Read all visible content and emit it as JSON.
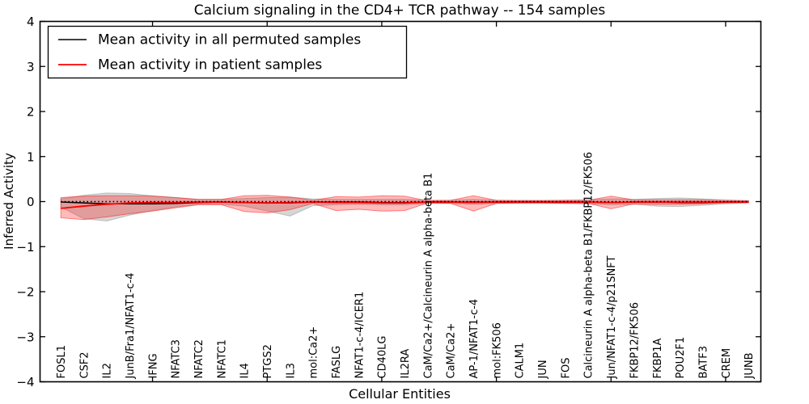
{
  "title": "Calcium signaling in the CD4+ TCR pathway -- 154 samples",
  "legend": {
    "items": [
      {
        "label": "Mean activity in all permuted samples",
        "color": "#000000"
      },
      {
        "label": "Mean activity in patient samples",
        "color": "#ff0000"
      }
    ]
  },
  "axes": {
    "x_label": "Cellular Entities",
    "y_label": "Inferred Activity",
    "y_tick_labels": [
      "4",
      "3",
      "2",
      "1",
      "0",
      "−1",
      "−2",
      "−3",
      "−4"
    ],
    "y_tick_values": [
      4,
      3,
      2,
      1,
      0,
      -1,
      -2,
      -3,
      -4
    ],
    "x_inner_tick_indices": [
      4,
      9,
      14,
      19,
      24,
      29
    ]
  },
  "chart_data": {
    "type": "line",
    "title": "Calcium signaling in the CD4+ TCR pathway -- 154 samples",
    "xlabel": "Cellular Entities",
    "ylabel": "Inferred Activity",
    "ylim": [
      -4,
      4
    ],
    "grid": false,
    "legend_position": "upper left",
    "zero_line": {
      "style": "dotted",
      "color": "#000000",
      "y": 0
    },
    "categories": [
      "FOSL1",
      "CSF2",
      "IL2",
      "JunB/Fra1/NFAT1-c-4",
      "IFNG",
      "NFATC3",
      "NFATC2",
      "NFATC1",
      "IL4",
      "PTGS2",
      "IL3",
      "mol:Ca2+",
      "FASLG",
      "NFAT1-c-4/ICER1",
      "CD40LG",
      "IL2RA",
      "CaM/Ca2+/Calcineurin A alpha-beta B1",
      "CaM/Ca2+",
      "AP-1/NFAT1-c-4",
      "mol:FK506",
      "CALM1",
      "JUN",
      "FOS",
      "Calcineurin A alpha-beta B1/FKBP12/FK506",
      "Jun/NFAT1-c-4/p21SNFT",
      "FKBP12/FK506",
      "FKBP1A",
      "POU2F1",
      "BATF3",
      "CREM",
      "JUNB"
    ],
    "series": [
      {
        "name": "Mean activity in all permuted samples",
        "color": "#000000",
        "width": 1.5,
        "values": [
          -0.01,
          -0.03,
          -0.05,
          -0.05,
          -0.05,
          -0.04,
          -0.02,
          -0.01,
          -0.02,
          -0.03,
          -0.03,
          -0.01,
          -0.01,
          -0.01,
          -0.02,
          -0.02,
          -0.01,
          -0.01,
          -0.01,
          -0.01,
          -0.01,
          -0.01,
          -0.01,
          -0.01,
          -0.02,
          -0.01,
          -0.01,
          -0.02,
          -0.02,
          -0.01,
          -0.01
        ]
      },
      {
        "name": "Mean activity in patient samples",
        "color": "#ff0000",
        "width": 1.8,
        "values": [
          -0.15,
          -0.1,
          -0.06,
          -0.03,
          -0.02,
          -0.02,
          -0.01,
          -0.01,
          -0.02,
          -0.03,
          -0.02,
          -0.01,
          -0.02,
          -0.02,
          -0.03,
          -0.03,
          -0.01,
          -0.01,
          -0.02,
          -0.01,
          -0.01,
          -0.01,
          -0.01,
          -0.01,
          -0.02,
          -0.01,
          -0.01,
          -0.01,
          -0.01,
          -0.01,
          -0.01
        ]
      }
    ],
    "bands": [
      {
        "name": "permuted-std-band",
        "color": "#999999",
        "fill_alpha": 0.4,
        "edge_alpha": 0.55,
        "lo": [
          -0.12,
          -0.38,
          -0.43,
          -0.3,
          -0.2,
          -0.12,
          -0.06,
          -0.06,
          -0.1,
          -0.21,
          -0.32,
          -0.09,
          -0.07,
          -0.06,
          -0.07,
          -0.07,
          -0.04,
          -0.04,
          -0.06,
          -0.04,
          -0.04,
          -0.04,
          -0.04,
          -0.05,
          -0.07,
          -0.06,
          -0.1,
          -0.11,
          -0.08,
          -0.05,
          -0.03
        ],
        "hi": [
          0.06,
          0.14,
          0.19,
          0.18,
          0.13,
          0.09,
          0.05,
          0.05,
          0.07,
          0.09,
          0.1,
          0.06,
          0.05,
          0.05,
          0.05,
          0.05,
          0.03,
          0.03,
          0.05,
          0.03,
          0.03,
          0.03,
          0.03,
          0.04,
          0.06,
          0.05,
          0.07,
          0.08,
          0.06,
          0.04,
          0.02
        ]
      },
      {
        "name": "patient-std-band",
        "color": "#ff0000",
        "fill_alpha": 0.27,
        "edge_alpha": 0.45,
        "lo": [
          -0.36,
          -0.4,
          -0.34,
          -0.27,
          -0.21,
          -0.14,
          -0.07,
          -0.07,
          -0.22,
          -0.25,
          -0.18,
          -0.04,
          -0.2,
          -0.17,
          -0.21,
          -0.2,
          -0.03,
          -0.04,
          -0.21,
          -0.04,
          -0.03,
          -0.03,
          -0.04,
          -0.04,
          -0.16,
          -0.05,
          -0.06,
          -0.06,
          -0.05,
          -0.03,
          -0.02
        ],
        "hi": [
          0.09,
          0.12,
          0.13,
          0.13,
          0.12,
          0.09,
          0.05,
          0.05,
          0.13,
          0.14,
          0.1,
          0.03,
          0.11,
          0.1,
          0.13,
          0.12,
          0.02,
          0.03,
          0.13,
          0.03,
          0.02,
          0.02,
          0.03,
          0.03,
          0.12,
          0.04,
          0.04,
          0.04,
          0.04,
          0.02,
          0.02
        ]
      }
    ]
  }
}
